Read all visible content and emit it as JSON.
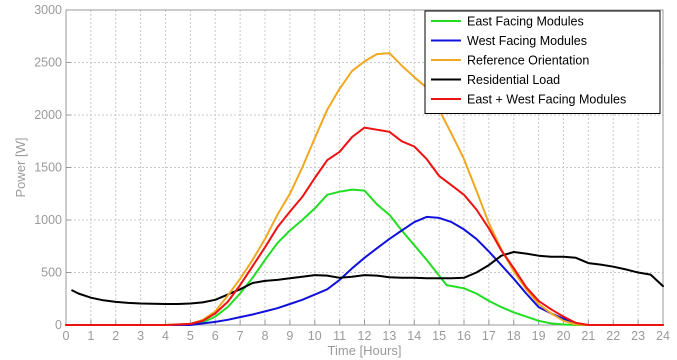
{
  "chart_data": {
    "type": "line",
    "title": "",
    "xlabel": "Time [Hours]",
    "ylabel": "Power [W]",
    "xlim": [
      0,
      24
    ],
    "ylim": [
      0,
      3000
    ],
    "xticks": [
      0,
      1,
      2,
      3,
      4,
      5,
      6,
      7,
      8,
      9,
      10,
      11,
      12,
      13,
      14,
      15,
      16,
      17,
      18,
      19,
      20,
      21,
      22,
      23,
      24
    ],
    "yticks": [
      0,
      500,
      1000,
      1500,
      2000,
      2500,
      3000
    ],
    "grid": true,
    "legend_position": "top-right",
    "series": [
      {
        "name": "East Facing Modules",
        "color": "#22dd22",
        "points": [
          [
            0,
            0
          ],
          [
            4,
            0
          ],
          [
            5,
            5
          ],
          [
            5.5,
            25
          ],
          [
            6,
            80
          ],
          [
            6.5,
            170
          ],
          [
            7,
            300
          ],
          [
            7.5,
            450
          ],
          [
            8,
            620
          ],
          [
            8.5,
            780
          ],
          [
            9,
            900
          ],
          [
            9.5,
            1000
          ],
          [
            10,
            1110
          ],
          [
            10.5,
            1240
          ],
          [
            11,
            1270
          ],
          [
            11.5,
            1290
          ],
          [
            12,
            1280
          ],
          [
            12.5,
            1150
          ],
          [
            13,
            1050
          ],
          [
            13.5,
            900
          ],
          [
            14,
            760
          ],
          [
            14.5,
            620
          ],
          [
            15,
            470
          ],
          [
            15.3,
            380
          ],
          [
            16,
            350
          ],
          [
            16.5,
            300
          ],
          [
            17,
            230
          ],
          [
            17.5,
            170
          ],
          [
            18,
            120
          ],
          [
            18.5,
            80
          ],
          [
            19,
            40
          ],
          [
            19.5,
            15
          ],
          [
            20,
            5
          ],
          [
            20.5,
            0
          ],
          [
            24,
            0
          ]
        ]
      },
      {
        "name": "West Facing Modules",
        "color": "#1111dd",
        "points": [
          [
            0,
            0
          ],
          [
            5,
            0
          ],
          [
            5.5,
            15
          ],
          [
            6,
            30
          ],
          [
            6.5,
            50
          ],
          [
            7,
            75
          ],
          [
            7.5,
            100
          ],
          [
            8,
            130
          ],
          [
            8.5,
            160
          ],
          [
            9,
            200
          ],
          [
            9.5,
            240
          ],
          [
            10,
            290
          ],
          [
            10.5,
            340
          ],
          [
            11,
            430
          ],
          [
            11.5,
            540
          ],
          [
            12,
            640
          ],
          [
            12.5,
            730
          ],
          [
            13,
            820
          ],
          [
            13.5,
            900
          ],
          [
            14,
            980
          ],
          [
            14.5,
            1030
          ],
          [
            15,
            1020
          ],
          [
            15.5,
            980
          ],
          [
            16,
            910
          ],
          [
            16.5,
            820
          ],
          [
            17,
            700
          ],
          [
            17.5,
            570
          ],
          [
            18,
            440
          ],
          [
            18.5,
            300
          ],
          [
            19,
            170
          ],
          [
            19.5,
            110
          ],
          [
            20,
            60
          ],
          [
            20.5,
            10
          ],
          [
            21,
            0
          ],
          [
            24,
            0
          ]
        ]
      },
      {
        "name": "Reference Orientation",
        "color": "#f0a820",
        "points": [
          [
            0,
            0
          ],
          [
            4,
            0
          ],
          [
            5,
            10
          ],
          [
            5.5,
            50
          ],
          [
            6,
            130
          ],
          [
            6.5,
            280
          ],
          [
            7,
            440
          ],
          [
            7.5,
            620
          ],
          [
            8,
            820
          ],
          [
            8.5,
            1050
          ],
          [
            9,
            1250
          ],
          [
            9.5,
            1500
          ],
          [
            10,
            1780
          ],
          [
            10.5,
            2050
          ],
          [
            11,
            2250
          ],
          [
            11.5,
            2420
          ],
          [
            12,
            2510
          ],
          [
            12.5,
            2580
          ],
          [
            13,
            2590
          ],
          [
            13.5,
            2470
          ],
          [
            14,
            2360
          ],
          [
            14.5,
            2260
          ],
          [
            15,
            2050
          ],
          [
            15.5,
            1820
          ],
          [
            16,
            1580
          ],
          [
            16.5,
            1280
          ],
          [
            17,
            970
          ],
          [
            17.5,
            720
          ],
          [
            18,
            510
          ],
          [
            18.5,
            340
          ],
          [
            19,
            200
          ],
          [
            19.5,
            110
          ],
          [
            20,
            40
          ],
          [
            20.5,
            5
          ],
          [
            21,
            0
          ],
          [
            24,
            0
          ]
        ]
      },
      {
        "name": "Residential Load",
        "color": "#000000",
        "points": [
          [
            0.25,
            330
          ],
          [
            0.5,
            300
          ],
          [
            1,
            260
          ],
          [
            1.5,
            235
          ],
          [
            2,
            220
          ],
          [
            2.5,
            210
          ],
          [
            3,
            205
          ],
          [
            3.5,
            203
          ],
          [
            4,
            200
          ],
          [
            4.5,
            200
          ],
          [
            5,
            205
          ],
          [
            5.5,
            215
          ],
          [
            6,
            240
          ],
          [
            6.5,
            290
          ],
          [
            7,
            340
          ],
          [
            7.5,
            400
          ],
          [
            8,
            420
          ],
          [
            8.5,
            430
          ],
          [
            9,
            445
          ],
          [
            9.5,
            460
          ],
          [
            10,
            475
          ],
          [
            10.5,
            470
          ],
          [
            11,
            450
          ],
          [
            11.5,
            460
          ],
          [
            12,
            475
          ],
          [
            12.5,
            470
          ],
          [
            13,
            455
          ],
          [
            13.5,
            450
          ],
          [
            14,
            450
          ],
          [
            14.5,
            445
          ],
          [
            15,
            445
          ],
          [
            15.5,
            445
          ],
          [
            16,
            450
          ],
          [
            16.5,
            500
          ],
          [
            17,
            570
          ],
          [
            17.5,
            660
          ],
          [
            18,
            695
          ],
          [
            18.5,
            680
          ],
          [
            19,
            660
          ],
          [
            19.5,
            650
          ],
          [
            20,
            650
          ],
          [
            20.5,
            640
          ],
          [
            21,
            590
          ],
          [
            21.5,
            575
          ],
          [
            22,
            555
          ],
          [
            22.5,
            530
          ],
          [
            23,
            500
          ],
          [
            23.5,
            480
          ],
          [
            24,
            370
          ]
        ]
      },
      {
        "name": "East + West Facing Modules",
        "color": "#ee1111",
        "points": [
          [
            0,
            0
          ],
          [
            4,
            0
          ],
          [
            5,
            10
          ],
          [
            5.5,
            40
          ],
          [
            6,
            110
          ],
          [
            6.5,
            220
          ],
          [
            7,
            380
          ],
          [
            7.5,
            560
          ],
          [
            8,
            740
          ],
          [
            8.5,
            930
          ],
          [
            9,
            1080
          ],
          [
            9.5,
            1220
          ],
          [
            10,
            1400
          ],
          [
            10.5,
            1570
          ],
          [
            11,
            1650
          ],
          [
            11.5,
            1790
          ],
          [
            12,
            1880
          ],
          [
            12.5,
            1860
          ],
          [
            13,
            1840
          ],
          [
            13.5,
            1750
          ],
          [
            14,
            1700
          ],
          [
            14.5,
            1580
          ],
          [
            15,
            1420
          ],
          [
            15.5,
            1330
          ],
          [
            16,
            1240
          ],
          [
            16.5,
            1100
          ],
          [
            17,
            920
          ],
          [
            17.5,
            710
          ],
          [
            18,
            540
          ],
          [
            18.5,
            360
          ],
          [
            19,
            230
          ],
          [
            19.5,
            150
          ],
          [
            20,
            80
          ],
          [
            20.5,
            20
          ],
          [
            21,
            0
          ],
          [
            24,
            0
          ]
        ]
      }
    ]
  }
}
